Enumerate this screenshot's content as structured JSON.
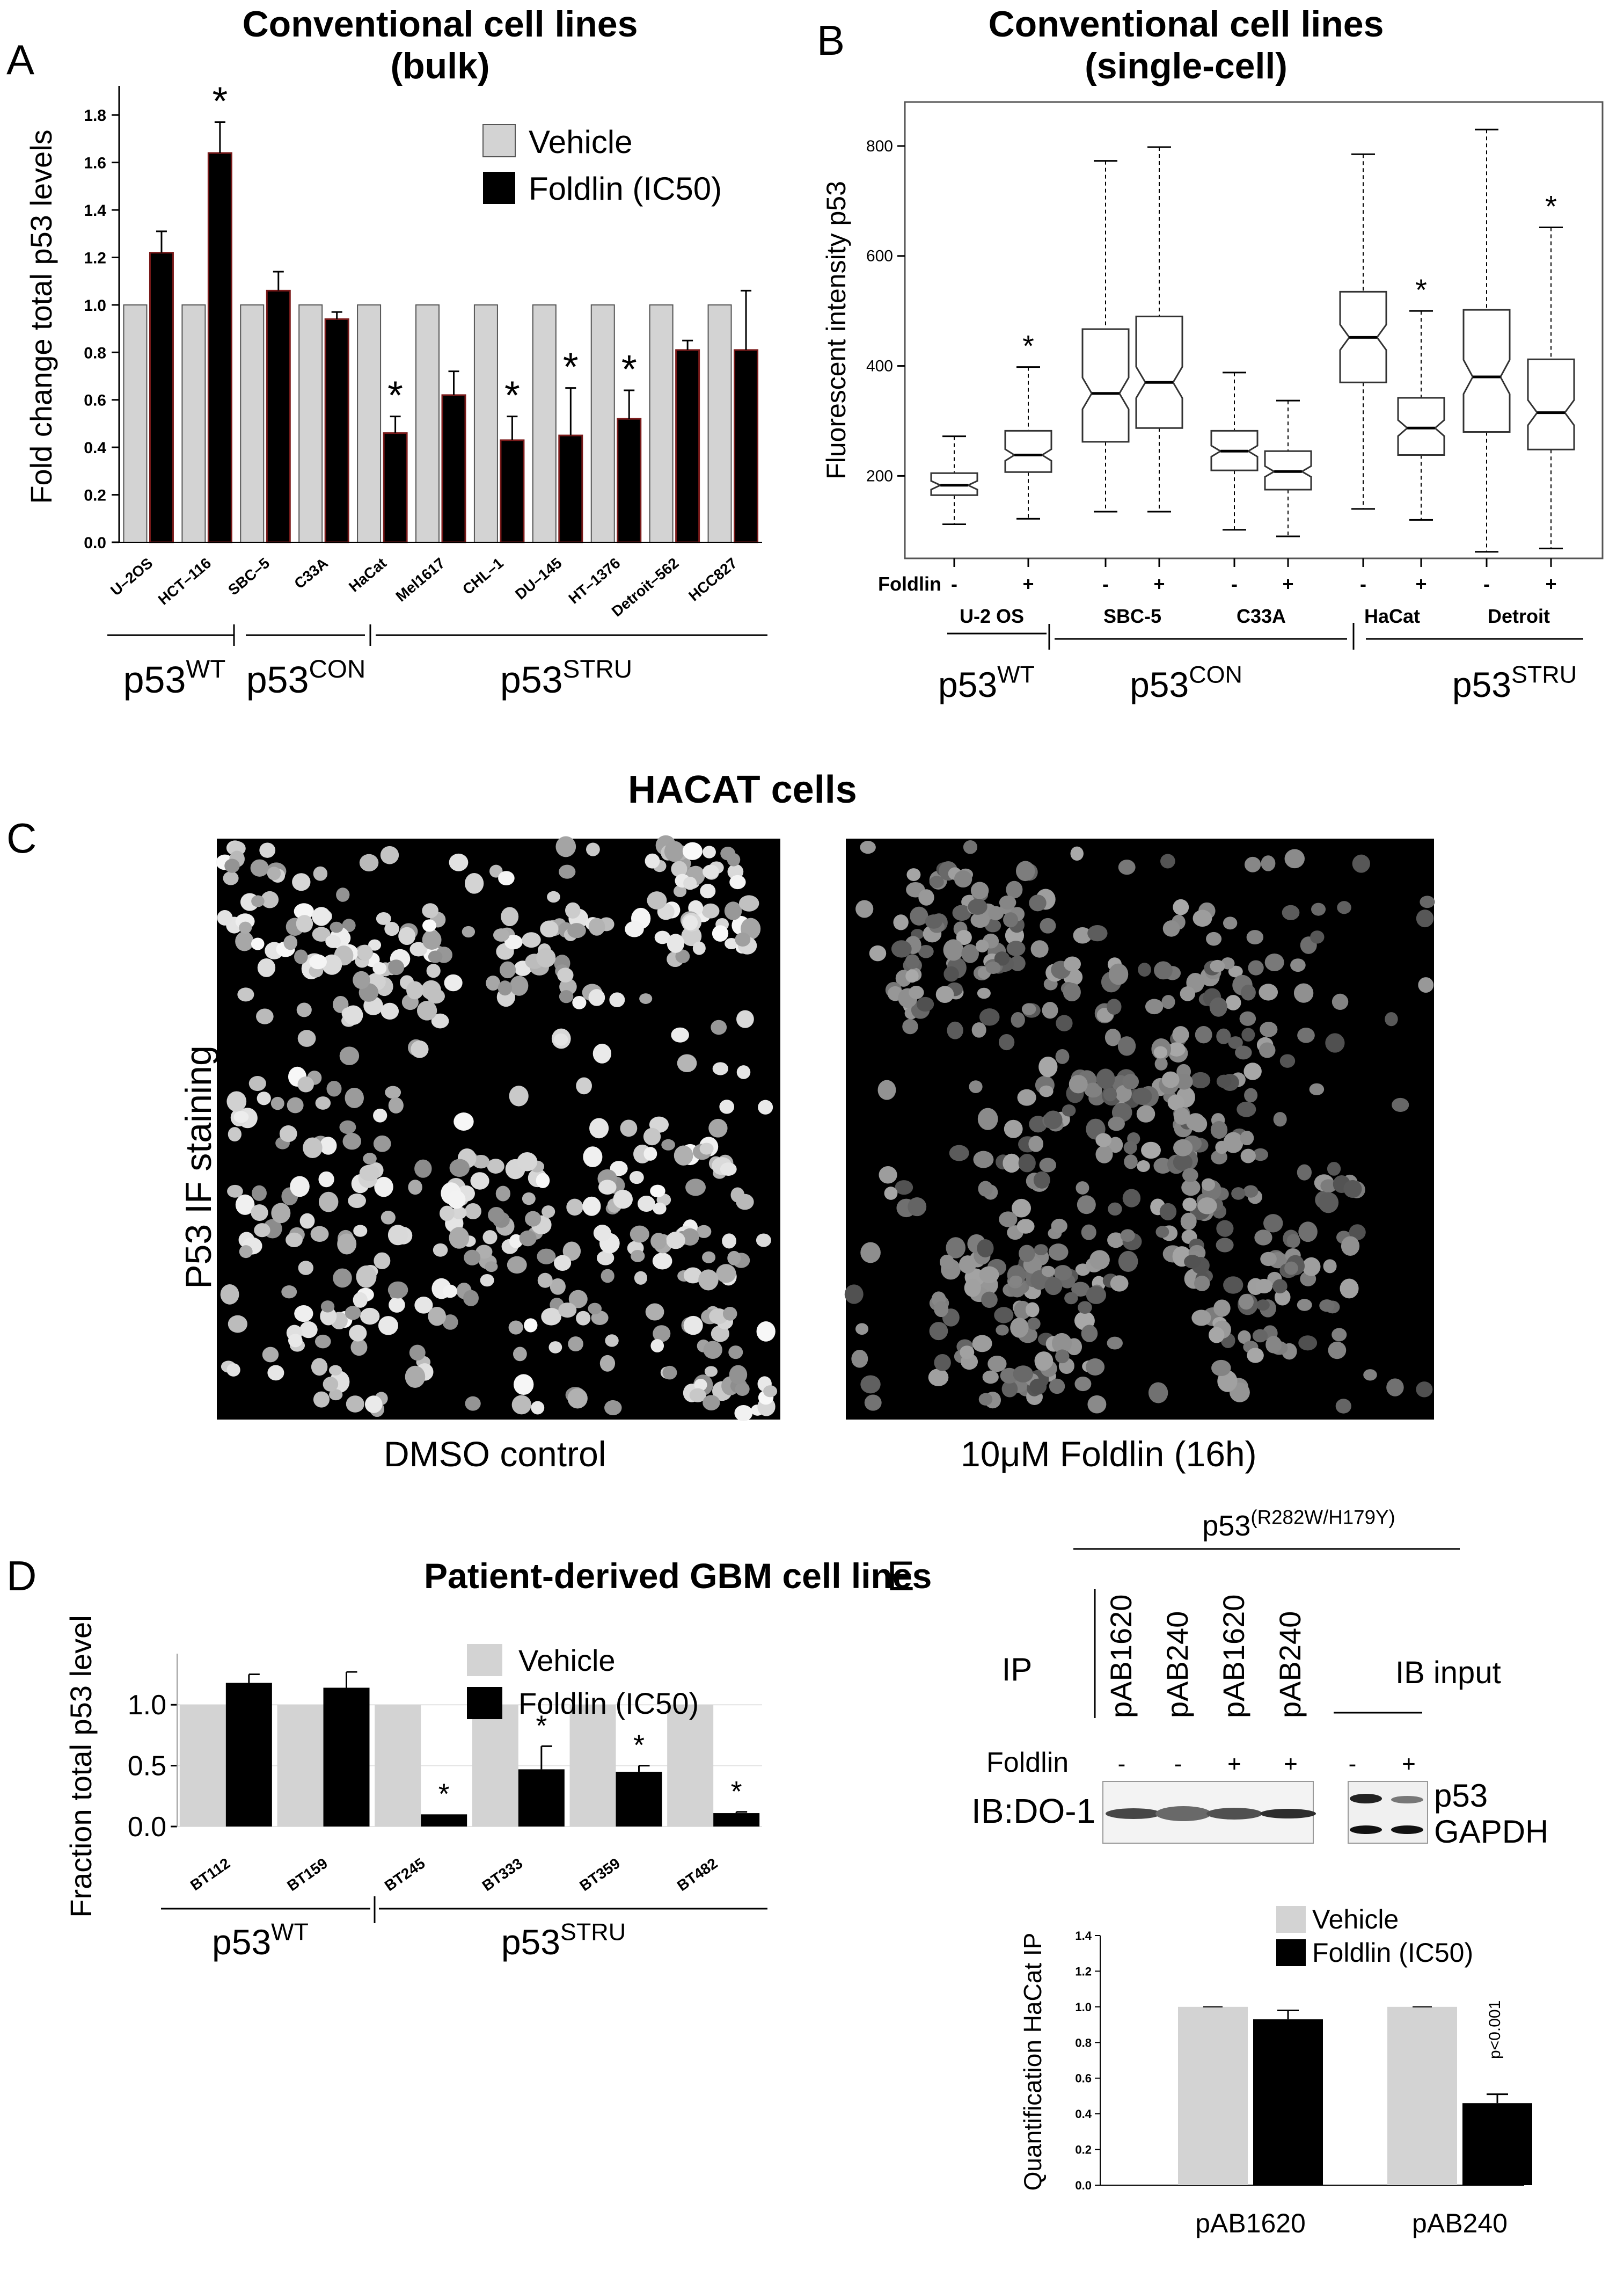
{
  "colors": {
    "vehicle": "#d3d3d3",
    "foldlin": "#000000",
    "panel_bg": "#000000"
  },
  "panel_letters": [
    "A",
    "B",
    "C",
    "D",
    "E"
  ],
  "chart_data": [
    {
      "id": "A",
      "type": "bar",
      "title": "Conventional cell lines",
      "subtitle": "(bulk)",
      "ylabel": "Fold change total p53 levels",
      "ylim": [
        0,
        1.9
      ],
      "yticks": [
        "0.0",
        "0.2",
        "0.4",
        "0.6",
        "0.8",
        "1.0",
        "1.2",
        "1.4",
        "1.6",
        "1.8"
      ],
      "categories": [
        "U–2OS",
        "HCT–116",
        "SBC–5",
        "C33A",
        "HaCat",
        "Mel1617",
        "CHL–1",
        "DU–145",
        "HT–1376",
        "Detroit–562",
        "HCC827"
      ],
      "series": [
        {
          "name": "Vehicle",
          "values": [
            1,
            1,
            1,
            1,
            1,
            1,
            1,
            1,
            1,
            1,
            1
          ],
          "errors": [
            0,
            0,
            0,
            0,
            0,
            0,
            0,
            0,
            0,
            0,
            0
          ]
        },
        {
          "name": "Foldlin (IC50)",
          "values": [
            1.22,
            1.64,
            1.06,
            0.94,
            0.46,
            0.62,
            0.43,
            0.45,
            0.52,
            0.81,
            0.81
          ],
          "errors": [
            0.09,
            0.13,
            0.08,
            0.03,
            0.07,
            0.1,
            0.1,
            0.2,
            0.12,
            0.04,
            0.25
          ]
        }
      ],
      "significant": [
        false,
        true,
        false,
        false,
        true,
        false,
        true,
        true,
        true,
        false,
        false
      ],
      "sig_marker": "*",
      "groups": [
        {
          "base": "p53",
          "sup": "WT",
          "first": 0,
          "last": 1
        },
        {
          "base": "p53",
          "sup": "CON",
          "first": 2,
          "last": 3
        },
        {
          "base": "p53",
          "sup": "STRU",
          "first": 4,
          "last": 10
        }
      ]
    },
    {
      "id": "B",
      "type": "box",
      "title": "Conventional cell lines",
      "subtitle": "(single-cell)",
      "ylabel": "Fluorescent intensity p53",
      "ylim": [
        50,
        880
      ],
      "yticks": [
        200,
        400,
        600,
        800
      ],
      "treatment_label": "Foldlin",
      "boxes": [
        {
          "line": "U-2 OS",
          "treatment": "-",
          "min": 112,
          "q1": 165,
          "median": 183,
          "q3": 205,
          "max": 272,
          "sig": false
        },
        {
          "line": "U-2 OS",
          "treatment": "+",
          "min": 122,
          "q1": 207,
          "median": 238,
          "q3": 282,
          "max": 398,
          "sig": true
        },
        {
          "line": "SBC-5",
          "treatment": "-",
          "min": 135,
          "q1": 262,
          "median": 350,
          "q3": 467,
          "max": 773,
          "sig": false
        },
        {
          "line": "SBC-5",
          "treatment": "+",
          "min": 135,
          "q1": 287,
          "median": 370,
          "q3": 490,
          "max": 798,
          "sig": false
        },
        {
          "line": "C33A",
          "treatment": "-",
          "min": 102,
          "q1": 210,
          "median": 245,
          "q3": 282,
          "max": 388,
          "sig": false
        },
        {
          "line": "C33A",
          "treatment": "+",
          "min": 90,
          "q1": 175,
          "median": 208,
          "q3": 245,
          "max": 337,
          "sig": false
        },
        {
          "line": "HaCat",
          "treatment": "-",
          "min": 140,
          "q1": 370,
          "median": 452,
          "q3": 535,
          "max": 785,
          "sig": false
        },
        {
          "line": "HaCat",
          "treatment": "+",
          "min": 120,
          "q1": 238,
          "median": 287,
          "q3": 342,
          "max": 500,
          "sig": true
        },
        {
          "line": "Detroit",
          "treatment": "-",
          "min": 62,
          "q1": 280,
          "median": 380,
          "q3": 502,
          "max": 830,
          "sig": false
        },
        {
          "line": "Detroit",
          "treatment": "+",
          "min": 68,
          "q1": 248,
          "median": 315,
          "q3": 412,
          "max": 652,
          "sig": true
        }
      ],
      "line_labels": [
        "U-2 OS",
        "SBC-5",
        "C33A",
        "HaCat",
        "Detroit"
      ],
      "groups": [
        {
          "base": "p53",
          "sup": "WT"
        },
        {
          "base": "p53",
          "sup": "CON"
        },
        {
          "base": "p53",
          "sup": "STRU"
        }
      ]
    },
    {
      "id": "D",
      "type": "bar",
      "title": "Patient-derived GBM cell lines",
      "ylabel": "Fraction total p53 level",
      "ylim": [
        0,
        1.42
      ],
      "yticks": [
        "0.0",
        "0.5",
        "1.0"
      ],
      "categories": [
        "BT112",
        "BT159",
        "BT245",
        "BT333",
        "BT359",
        "BT482"
      ],
      "series": [
        {
          "name": "Vehicle",
          "values": [
            1,
            1,
            1,
            1,
            1,
            1
          ],
          "errors": [
            0,
            0,
            0,
            0,
            0,
            0
          ]
        },
        {
          "name": "Foldlin (IC50)",
          "values": [
            1.18,
            1.14,
            0.1,
            0.47,
            0.45,
            0.11
          ],
          "errors": [
            0.07,
            0.13,
            0,
            0.19,
            0.05,
            0.01
          ]
        }
      ],
      "significant": [
        false,
        false,
        true,
        true,
        true,
        true
      ],
      "sig_marker": "*",
      "groups": [
        {
          "base": "p53",
          "sup": "WT"
        },
        {
          "base": "p53",
          "sup": "STRU"
        }
      ]
    },
    {
      "id": "E",
      "type": "bar",
      "ylabel": "Quantification HaCat IP",
      "ylim": [
        0,
        1.4
      ],
      "yticks": [
        "0.0",
        "0.2",
        "0.4",
        "0.6",
        "0.8",
        "1.0",
        "1.2",
        "1.4"
      ],
      "categories": [
        "pAB1620",
        "pAB240"
      ],
      "series": [
        {
          "name": "Vehicle",
          "values": [
            1,
            1
          ],
          "errors": [
            0,
            0
          ]
        },
        {
          "name": "Foldlin (IC50)",
          "values": [
            0.93,
            0.46
          ],
          "errors": [
            0.05,
            0.05
          ]
        }
      ],
      "annotation": "p<0.001"
    }
  ],
  "panelC": {
    "title": "HACAT cells",
    "ylabel": "P53 IF staining",
    "left_caption": "DMSO control",
    "right_caption": "10μM Foldlin (16h)"
  },
  "panelE_blot": {
    "genotype_base": "p53",
    "genotype_sup": "(R282W/H179Y)",
    "ip_label": "IP",
    "antibodies": [
      "pAB1620",
      "pAB240",
      "pAB1620",
      "pAB240"
    ],
    "input_label": "IB input",
    "treatment_label": "Foldlin",
    "lane_signs": [
      "-",
      "-",
      "+",
      "+"
    ],
    "input_signs": [
      "-",
      "+"
    ],
    "ib_label": "IB:DO-1",
    "band_labels": [
      "p53",
      "GAPDH"
    ]
  }
}
